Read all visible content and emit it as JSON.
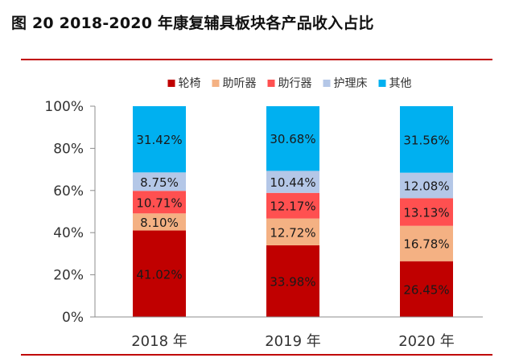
{
  "figure_title": "图 20 2018-2020 年康复辅具板块各产品收入占比",
  "chart_data": {
    "type": "bar",
    "stacked": true,
    "categories": [
      "2018 年",
      "2019 年",
      "2020 年"
    ],
    "series": [
      {
        "name": "轮椅",
        "color": "#c00000",
        "values": [
          41.02,
          33.98,
          26.45
        ],
        "labels": [
          "41.02%",
          "33.98%",
          "26.45%"
        ]
      },
      {
        "name": "助听器",
        "color": "#f4b183",
        "values": [
          8.1,
          12.72,
          16.78
        ],
        "labels": [
          "8.10%",
          "12.72%",
          "16.78%"
        ]
      },
      {
        "name": "助行器",
        "color": "#ff5050",
        "values": [
          10.71,
          12.17,
          13.13
        ],
        "labels": [
          "10.71%",
          "12.17%",
          "13.13%"
        ]
      },
      {
        "name": "护理床",
        "color": "#b4c7e7",
        "values": [
          8.75,
          10.44,
          12.08
        ],
        "labels": [
          "8.75%",
          "10.44%",
          "12.08%"
        ]
      },
      {
        "name": "其他",
        "color": "#00b0f0",
        "values": [
          31.42,
          30.68,
          31.56
        ],
        "labels": [
          "31.42%",
          "30.68%",
          "31.56%"
        ]
      }
    ],
    "ylim": [
      0,
      100
    ],
    "yticks": [
      0,
      20,
      40,
      60,
      80,
      100
    ],
    "ytick_labels": [
      "0%",
      "20%",
      "40%",
      "60%",
      "80%",
      "100%"
    ],
    "legend_position": "top",
    "grid": false
  }
}
